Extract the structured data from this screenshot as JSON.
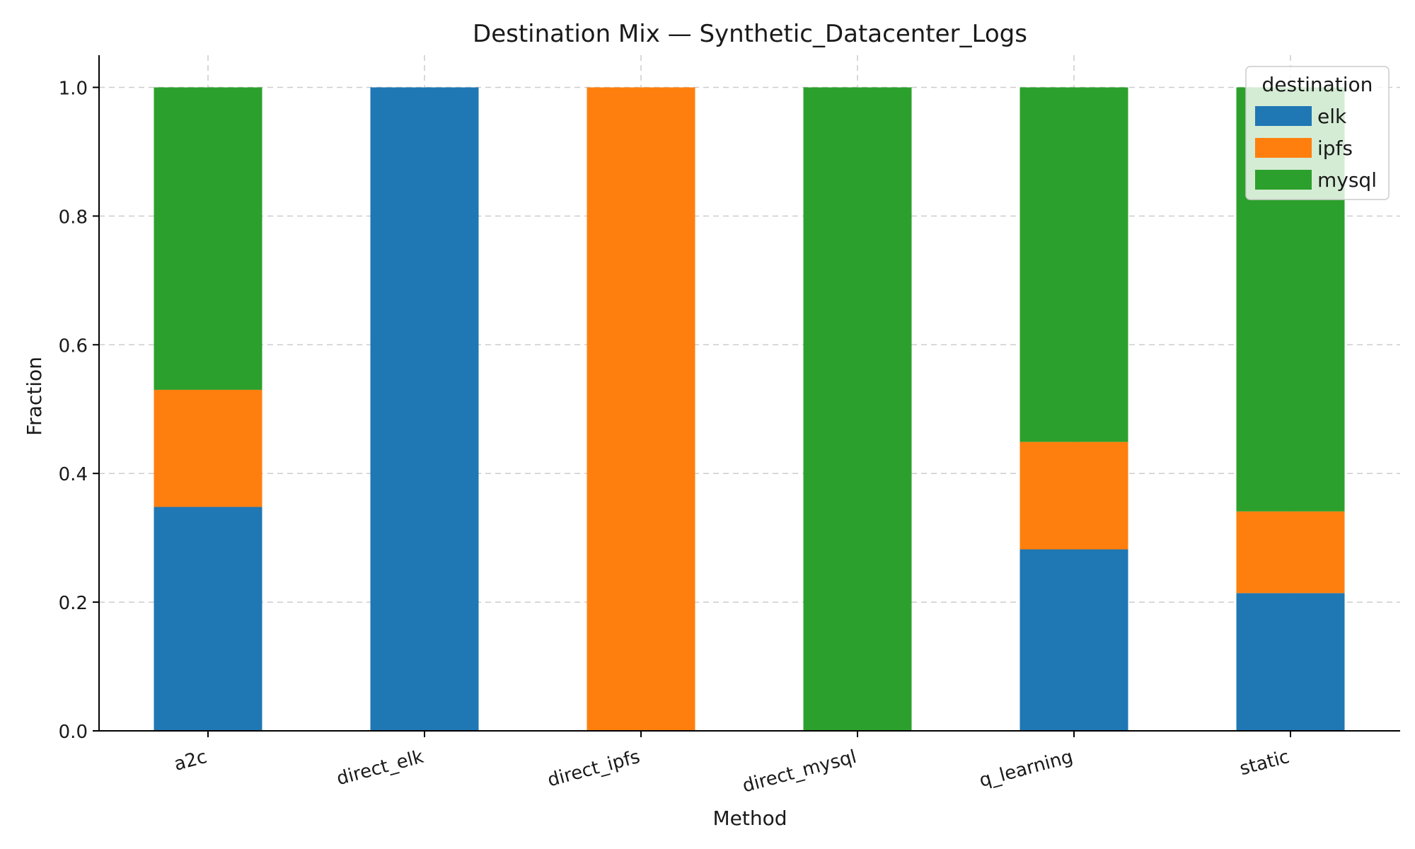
{
  "chart_data": {
    "type": "bar",
    "stacked": true,
    "title": "Destination Mix — Synthetic_Datacenter_Logs",
    "xlabel": "Method",
    "ylabel": "Fraction",
    "categories": [
      "a2c",
      "direct_elk",
      "direct_ipfs",
      "direct_mysql",
      "q_learning",
      "static"
    ],
    "ylim": [
      0,
      1.05
    ],
    "yticks": [
      0.0,
      0.2,
      0.4,
      0.6,
      0.8,
      1.0
    ],
    "ytick_labels": [
      "0.0",
      "0.2",
      "0.4",
      "0.6",
      "0.8",
      "1.0"
    ],
    "grid": true,
    "legend": {
      "title": "destination",
      "placement": "top-right"
    },
    "series": [
      {
        "name": "elk",
        "color": "#1f77b4",
        "values": [
          0.348,
          1.0,
          0.0,
          0.0,
          0.282,
          0.214
        ]
      },
      {
        "name": "ipfs",
        "color": "#ff7f0e",
        "values": [
          0.182,
          0.0,
          1.0,
          0.0,
          0.167,
          0.127
        ]
      },
      {
        "name": "mysql",
        "color": "#2ca02c",
        "values": [
          0.47,
          0.0,
          0.0,
          1.0,
          0.551,
          0.659
        ]
      }
    ]
  }
}
